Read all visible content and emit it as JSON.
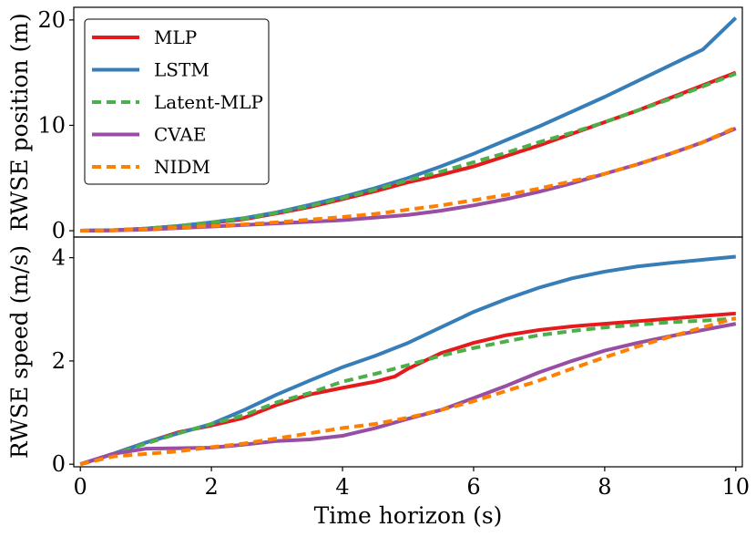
{
  "chart_data": [
    {
      "type": "line",
      "panel": "top",
      "xlabel": "",
      "ylabel": "RWSE position (m)",
      "xlim": [
        -0.1,
        10.1
      ],
      "ylim": [
        -0.6,
        21.2
      ],
      "xticks": [],
      "yticks": [
        0,
        10,
        20
      ],
      "legend": {
        "position": "top-left"
      },
      "series": [
        {
          "name": "MLP",
          "color": "#e41a1c",
          "dash": "",
          "x": [
            0,
            0.5,
            1,
            1.5,
            2,
            2.5,
            3,
            3.5,
            4,
            4.5,
            5,
            5.5,
            6,
            6.5,
            7,
            7.5,
            8,
            8.5,
            9,
            9.5,
            10
          ],
          "y": [
            0,
            0.05,
            0.2,
            0.45,
            0.75,
            1.1,
            1.65,
            2.25,
            3.0,
            3.75,
            4.6,
            5.3,
            6.1,
            7.1,
            8.1,
            9.2,
            10.3,
            11.4,
            12.6,
            13.8,
            15.0
          ]
        },
        {
          "name": "LSTM",
          "color": "#377eb8",
          "dash": "",
          "x": [
            0,
            0.5,
            1,
            1.5,
            2,
            2.5,
            3,
            3.5,
            4,
            4.5,
            5,
            5.5,
            6,
            6.5,
            7,
            7.5,
            8,
            8.5,
            9,
            9.5,
            10
          ],
          "y": [
            0,
            0.05,
            0.2,
            0.45,
            0.8,
            1.2,
            1.75,
            2.45,
            3.2,
            4.05,
            5.0,
            6.1,
            7.3,
            8.6,
            9.9,
            11.3,
            12.7,
            14.2,
            15.7,
            17.2,
            20.2
          ]
        },
        {
          "name": "Latent-MLP",
          "color": "#4daf4a",
          "dash": "10,6",
          "x": [
            0,
            0.5,
            1,
            1.5,
            2,
            2.5,
            3,
            3.5,
            4,
            4.5,
            5,
            5.5,
            6,
            6.5,
            7,
            7.5,
            8,
            8.5,
            9,
            9.5,
            10
          ],
          "y": [
            0,
            0.05,
            0.2,
            0.45,
            0.8,
            1.15,
            1.7,
            2.35,
            3.1,
            3.9,
            4.8,
            5.6,
            6.5,
            7.4,
            8.4,
            9.3,
            10.3,
            11.4,
            12.5,
            13.7,
            14.9
          ]
        },
        {
          "name": "CVAE",
          "color": "#984ea3",
          "dash": "",
          "x": [
            0,
            0.5,
            1,
            1.5,
            2,
            2.5,
            3,
            3.5,
            4,
            4.5,
            5,
            5.5,
            6,
            6.5,
            7,
            7.5,
            8,
            8.5,
            9,
            9.5,
            10
          ],
          "y": [
            0,
            0.03,
            0.1,
            0.25,
            0.4,
            0.55,
            0.7,
            0.85,
            1.0,
            1.25,
            1.5,
            1.9,
            2.4,
            3.0,
            3.7,
            4.5,
            5.4,
            6.3,
            7.3,
            8.4,
            9.7
          ]
        },
        {
          "name": "NIDM",
          "color": "#ff7f00",
          "dash": "10,6",
          "x": [
            0,
            0.5,
            1,
            1.5,
            2,
            2.5,
            3,
            3.5,
            4,
            4.5,
            5,
            5.5,
            6,
            6.5,
            7,
            7.5,
            8,
            8.5,
            9,
            9.5,
            10
          ],
          "y": [
            0,
            0.04,
            0.14,
            0.3,
            0.45,
            0.6,
            0.8,
            1.05,
            1.3,
            1.6,
            2.0,
            2.4,
            2.9,
            3.4,
            4.0,
            4.7,
            5.4,
            6.3,
            7.3,
            8.4,
            9.8
          ]
        }
      ]
    },
    {
      "type": "line",
      "panel": "bottom",
      "xlabel": "Time horizon (s)",
      "ylabel": "RWSE speed (m/s)",
      "xlim": [
        -0.1,
        10.1
      ],
      "ylim": [
        -0.05,
        4.4
      ],
      "xticks": [
        0,
        2,
        4,
        6,
        8,
        10
      ],
      "yticks": [
        0,
        2,
        4
      ],
      "series": [
        {
          "name": "MLP",
          "color": "#e41a1c",
          "dash": "",
          "x": [
            0,
            0.5,
            1,
            1.5,
            2,
            2.5,
            3,
            3.5,
            4,
            4.5,
            4.8,
            5,
            5.5,
            6,
            6.5,
            7,
            7.5,
            8,
            8.5,
            9,
            9.5,
            10
          ],
          "y": [
            0,
            0.2,
            0.42,
            0.62,
            0.75,
            0.9,
            1.15,
            1.35,
            1.48,
            1.6,
            1.7,
            1.85,
            2.15,
            2.35,
            2.5,
            2.6,
            2.67,
            2.72,
            2.77,
            2.82,
            2.87,
            2.92
          ]
        },
        {
          "name": "LSTM",
          "color": "#377eb8",
          "dash": "",
          "x": [
            0,
            0.5,
            1,
            1.5,
            2,
            2.5,
            3,
            3.5,
            4,
            4.5,
            5,
            5.5,
            6,
            6.5,
            7,
            7.5,
            8,
            8.5,
            9,
            9.5,
            10
          ],
          "y": [
            0,
            0.2,
            0.42,
            0.6,
            0.78,
            1.05,
            1.35,
            1.62,
            1.88,
            2.1,
            2.35,
            2.65,
            2.95,
            3.2,
            3.42,
            3.6,
            3.73,
            3.83,
            3.9,
            3.96,
            4.02
          ]
        },
        {
          "name": "Latent-MLP",
          "color": "#4daf4a",
          "dash": "10,6",
          "x": [
            0,
            0.5,
            1,
            1.5,
            2,
            2.5,
            3,
            3.5,
            4,
            4.5,
            5,
            5.5,
            6,
            6.5,
            7,
            7.5,
            8,
            8.5,
            9,
            9.5,
            10
          ],
          "y": [
            0,
            0.18,
            0.4,
            0.6,
            0.78,
            0.95,
            1.2,
            1.38,
            1.6,
            1.75,
            1.92,
            2.1,
            2.25,
            2.38,
            2.5,
            2.58,
            2.65,
            2.7,
            2.75,
            2.78,
            2.82
          ]
        },
        {
          "name": "CVAE",
          "color": "#984ea3",
          "dash": "",
          "x": [
            0,
            0.5,
            1,
            1.5,
            2,
            2.5,
            3,
            3.5,
            4,
            4.5,
            5,
            5.5,
            6,
            6.5,
            7,
            7.5,
            8,
            8.5,
            9,
            9.5,
            10
          ],
          "y": [
            0,
            0.2,
            0.3,
            0.31,
            0.32,
            0.38,
            0.45,
            0.48,
            0.55,
            0.7,
            0.88,
            1.05,
            1.28,
            1.52,
            1.78,
            2.0,
            2.2,
            2.35,
            2.48,
            2.6,
            2.72
          ]
        },
        {
          "name": "NIDM",
          "color": "#ff7f00",
          "dash": "10,6",
          "x": [
            0,
            0.5,
            1,
            1.5,
            2,
            2.5,
            3,
            3.5,
            4,
            4.5,
            5,
            5.5,
            6,
            6.5,
            7,
            7.5,
            8,
            8.5,
            9,
            9.5,
            10
          ],
          "y": [
            0,
            0.15,
            0.2,
            0.25,
            0.33,
            0.4,
            0.5,
            0.6,
            0.7,
            0.78,
            0.9,
            1.05,
            1.22,
            1.42,
            1.62,
            1.85,
            2.07,
            2.28,
            2.47,
            2.65,
            2.83
          ]
        }
      ]
    }
  ]
}
